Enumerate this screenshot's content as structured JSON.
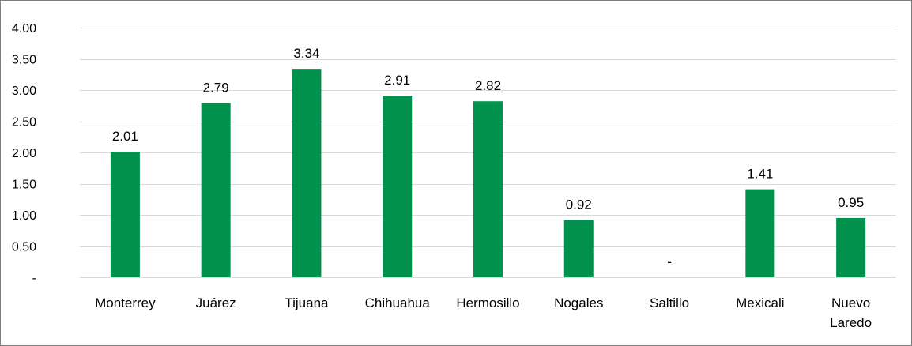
{
  "chart_data": {
    "type": "bar",
    "categories": [
      "Monterrey",
      "Juárez",
      "Tijuana",
      "Chihuahua",
      "Hermosillo",
      "Nogales",
      "Saltillo",
      "Mexicali",
      "Nuevo Laredo"
    ],
    "category_lines": [
      [
        "Monterrey"
      ],
      [
        "Juárez"
      ],
      [
        "Tijuana"
      ],
      [
        "Chihuahua"
      ],
      [
        "Hermosillo"
      ],
      [
        "Nogales"
      ],
      [
        "Saltillo"
      ],
      [
        "Mexicali"
      ],
      [
        "Nuevo",
        "Laredo"
      ]
    ],
    "values": [
      2.01,
      2.79,
      3.34,
      2.91,
      2.82,
      0.92,
      0,
      1.41,
      0.95
    ],
    "data_labels": [
      "2.01",
      "2.79",
      "3.34",
      "2.91",
      "2.82",
      "0.92",
      "-",
      "1.41",
      "0.95"
    ],
    "yticks": [
      0,
      0.5,
      1,
      1.5,
      2,
      2.5,
      3,
      3.5,
      4
    ],
    "ytick_labels": [
      "-",
      "0.50",
      "1.00",
      "1.50",
      "2.00",
      "2.50",
      "3.00",
      "3.50",
      "4.00"
    ],
    "ylim": [
      0,
      4
    ],
    "title": "",
    "xlabel": "",
    "ylabel": "",
    "grid": true,
    "legend": false,
    "colors": {
      "bar": "#00914c",
      "grid": "#d9d9d9",
      "border": "#7f7f7f",
      "text": "#000000"
    }
  }
}
